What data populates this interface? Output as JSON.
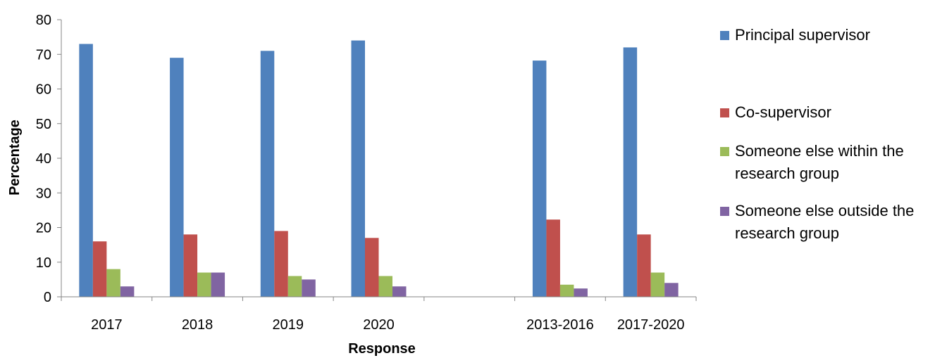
{
  "chart_data": {
    "type": "bar",
    "title": "",
    "xlabel": "Response",
    "ylabel": "Percentage",
    "ylim": [
      0,
      80
    ],
    "yticks": [
      "0",
      "10",
      "20",
      "30",
      "40",
      "50",
      "60",
      "70",
      "80"
    ],
    "grid": false,
    "legend_position": "right",
    "categories": [
      "2017",
      "2018",
      "2019",
      "2020",
      "",
      "2013-2016",
      "2017-2020"
    ],
    "series": [
      {
        "name": "Principal supervisor",
        "color": "#4f81bd",
        "values": [
          73,
          69,
          71,
          74,
          null,
          68.2,
          72
        ]
      },
      {
        "name": "Co-supervisor",
        "color": "#c0504d",
        "values": [
          16,
          18,
          19,
          17,
          null,
          22.3,
          18
        ]
      },
      {
        "name": "Someone else within the research group",
        "color": "#9bbb59",
        "values": [
          8,
          7,
          6,
          6,
          null,
          3.5,
          7
        ]
      },
      {
        "name": "Someone else outside the research group",
        "color": "#8064a2",
        "values": [
          3,
          7,
          5,
          3,
          null,
          2.4,
          4
        ]
      }
    ]
  }
}
